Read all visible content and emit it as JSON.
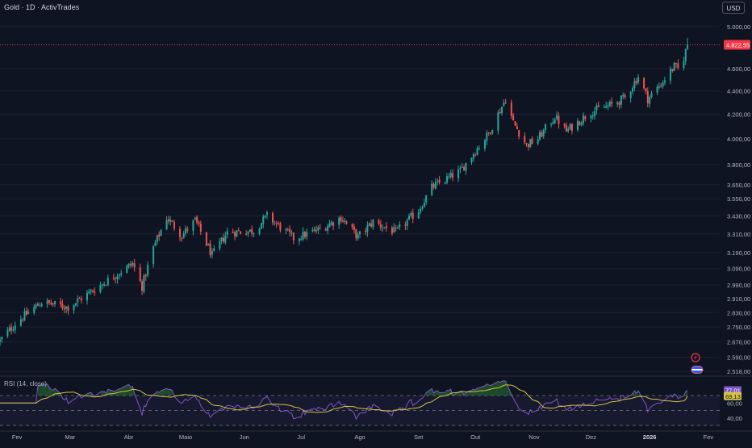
{
  "header": {
    "symbol_title": "Gold · 1D · ActivTrades",
    "currency_label": "USD"
  },
  "rsi_panel": {
    "title": "RSI (14, close)",
    "rsi_value_label": "77,01",
    "ma_value_label": "69,13",
    "level_label": "40,00",
    "rsi_value": 77.01,
    "rsi_ma_value": 69.13
  },
  "colors": {
    "background": "#0f1422",
    "up": "#26a69a",
    "down": "#ef5350",
    "rsi_line": "#7e57c2",
    "rsi_ma_line": "#d4c445",
    "last_price": "#f23645",
    "rsi_band": "#7e57c2",
    "overbought_fill": "#2e7d32"
  },
  "icons": [
    "lightning-icon",
    "flag-icon"
  ],
  "chart_data": {
    "type": "candlestick",
    "series_name": "Gold",
    "x_axis": {
      "start": "2025-01-23",
      "end": "2026-02-07",
      "ticks": [
        {
          "date": "2025-02-01",
          "label": "Fev"
        },
        {
          "date": "2025-03-01",
          "label": "Mar"
        },
        {
          "date": "2025-04-01",
          "label": "Abr"
        },
        {
          "date": "2025-05-01",
          "label": "Maio"
        },
        {
          "date": "2025-06-01",
          "label": "Jun"
        },
        {
          "date": "2025-07-01",
          "label": "Jul"
        },
        {
          "date": "2025-08-01",
          "label": "Ago"
        },
        {
          "date": "2025-09-01",
          "label": "Set"
        },
        {
          "date": "2025-10-01",
          "label": "Out"
        },
        {
          "date": "2025-11-01",
          "label": "Nov"
        },
        {
          "date": "2025-12-01",
          "label": "Dez"
        },
        {
          "date": "2026-01-01",
          "label": "2026",
          "bold": true
        },
        {
          "date": "2026-02-01",
          "label": "Fev"
        }
      ]
    },
    "y_axis": {
      "scale": "log",
      "range": [
        2518,
        5000
      ],
      "ticks": [
        {
          "value": 5000,
          "label": "5.000,00"
        },
        {
          "value": 4600,
          "label": "4.600,00"
        },
        {
          "value": 4400,
          "label": "4.400,00"
        },
        {
          "value": 4200,
          "label": "4.200,00"
        },
        {
          "value": 4000,
          "label": "4.000,00"
        },
        {
          "value": 3800,
          "label": "3.800,00"
        },
        {
          "value": 3650,
          "label": "3.650,00"
        },
        {
          "value": 3550,
          "label": "3.550,00"
        },
        {
          "value": 3430,
          "label": "3.430,00"
        },
        {
          "value": 3310,
          "label": "3.310,00"
        },
        {
          "value": 3190,
          "label": "3.190,00"
        },
        {
          "value": 3090,
          "label": "3.090,00"
        },
        {
          "value": 2990,
          "label": "2.990,00"
        },
        {
          "value": 2910,
          "label": "2.910,00"
        },
        {
          "value": 2830,
          "label": "2.830,00"
        },
        {
          "value": 2750,
          "label": "2.750,00"
        },
        {
          "value": 2670,
          "label": "2.670,00"
        },
        {
          "value": 2590,
          "label": "2.590,00"
        },
        {
          "value": 2518,
          "label": "2.518,00"
        }
      ],
      "grid": true
    },
    "last_price": {
      "value": 4822.55,
      "label": "4.822,55"
    },
    "close_anchors": [
      {
        "date": "2025-01-23",
        "close": 2675
      },
      {
        "date": "2025-02-01",
        "close": 2780
      },
      {
        "date": "2025-02-14",
        "close": 2890
      },
      {
        "date": "2025-02-28",
        "close": 2860
      },
      {
        "date": "2025-03-20",
        "close": 3010
      },
      {
        "date": "2025-04-03",
        "close": 3120
      },
      {
        "date": "2025-04-08",
        "close": 2980
      },
      {
        "date": "2025-04-14",
        "close": 3220
      },
      {
        "date": "2025-04-21",
        "close": 3420
      },
      {
        "date": "2025-04-29",
        "close": 3300
      },
      {
        "date": "2025-05-06",
        "close": 3400
      },
      {
        "date": "2025-05-15",
        "close": 3170
      },
      {
        "date": "2025-05-23",
        "close": 3320
      },
      {
        "date": "2025-06-06",
        "close": 3330
      },
      {
        "date": "2025-06-13",
        "close": 3430
      },
      {
        "date": "2025-06-27",
        "close": 3280
      },
      {
        "date": "2025-07-11",
        "close": 3340
      },
      {
        "date": "2025-07-22",
        "close": 3420
      },
      {
        "date": "2025-07-31",
        "close": 3290
      },
      {
        "date": "2025-08-08",
        "close": 3390
      },
      {
        "date": "2025-08-20",
        "close": 3320
      },
      {
        "date": "2025-09-01",
        "close": 3470
      },
      {
        "date": "2025-09-08",
        "close": 3630
      },
      {
        "date": "2025-09-23",
        "close": 3750
      },
      {
        "date": "2025-10-08",
        "close": 4040
      },
      {
        "date": "2025-10-17",
        "close": 4330
      },
      {
        "date": "2025-10-21",
        "close": 4130
      },
      {
        "date": "2025-10-28",
        "close": 3950
      },
      {
        "date": "2025-11-03",
        "close": 4000
      },
      {
        "date": "2025-11-12",
        "close": 4180
      },
      {
        "date": "2025-11-18",
        "close": 4060
      },
      {
        "date": "2025-12-01",
        "close": 4220
      },
      {
        "date": "2025-12-12",
        "close": 4280
      },
      {
        "date": "2025-12-19",
        "close": 4340
      },
      {
        "date": "2025-12-26",
        "close": 4530
      },
      {
        "date": "2025-12-31",
        "close": 4330
      },
      {
        "date": "2026-01-07",
        "close": 4460
      },
      {
        "date": "2026-01-14",
        "close": 4620
      },
      {
        "date": "2026-01-17",
        "close": 4580
      },
      {
        "date": "2026-01-21",
        "close": 4822.55
      }
    ],
    "rsi_axis": {
      "range": [
        30,
        90
      ],
      "levels": [
        70,
        50,
        30
      ],
      "labels": [
        {
          "value": 77.01,
          "label": "77,01"
        },
        {
          "value": 69.13,
          "label": "69,13"
        },
        {
          "value": 60,
          "label": "60,00"
        },
        {
          "value": 40,
          "label": "40,00"
        }
      ]
    }
  }
}
